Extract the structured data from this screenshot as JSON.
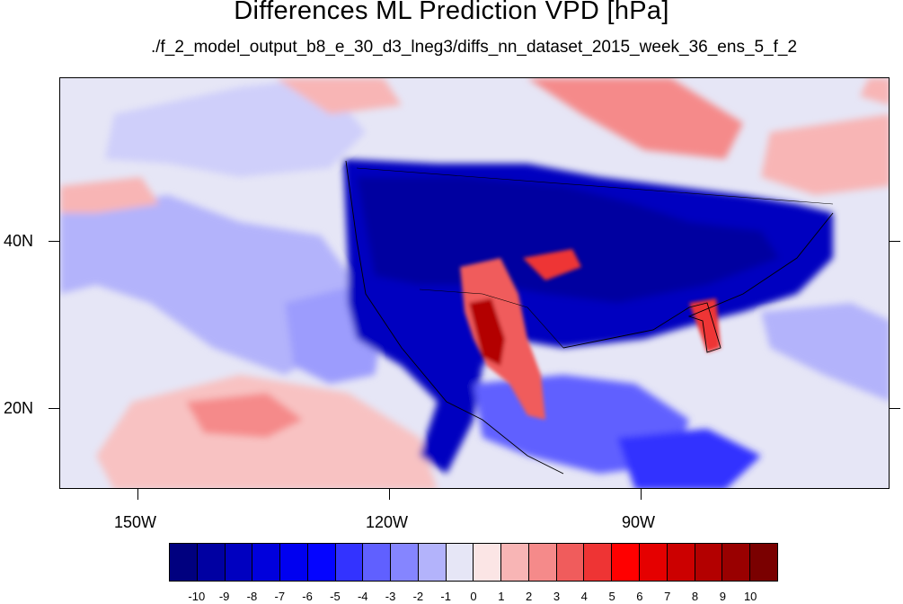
{
  "title": "Differences ML Prediction VPD [hPa]",
  "subtitle": "./f_2_model_output_b8_e_30_d3_lneg3/diffs_nn_dataset_2015_week_36_ens_5_f_2",
  "axes": {
    "longitude_labels": [
      "150W",
      "120W",
      "90W"
    ],
    "latitude_labels": [
      "40N",
      "20N"
    ]
  },
  "colorbar": {
    "labels": [
      "-10",
      "-9",
      "-8",
      "-7",
      "-6",
      "-5",
      "-4",
      "-3",
      "-2",
      "-1",
      "0",
      "1",
      "2",
      "3",
      "4",
      "5",
      "6",
      "7",
      "8",
      "9",
      "10"
    ],
    "colors": [
      "#00007f",
      "#0000a2",
      "#0000c0",
      "#0000dc",
      "#0000f0",
      "#0505ff",
      "#3333ff",
      "#6060ff",
      "#8585ff",
      "#b3b3fb",
      "#e6e6f6",
      "#fbe5e5",
      "#f8b5b5",
      "#f58a8a",
      "#f05c5c",
      "#ee3434",
      "#ff0000",
      "#e50000",
      "#cc0000",
      "#b30000",
      "#990000",
      "#7a0000"
    ]
  },
  "colors": {
    "ocean_neutral": "#e6e6f6",
    "strong_negative": "#0000a8",
    "strong_positive": "#b00000"
  }
}
